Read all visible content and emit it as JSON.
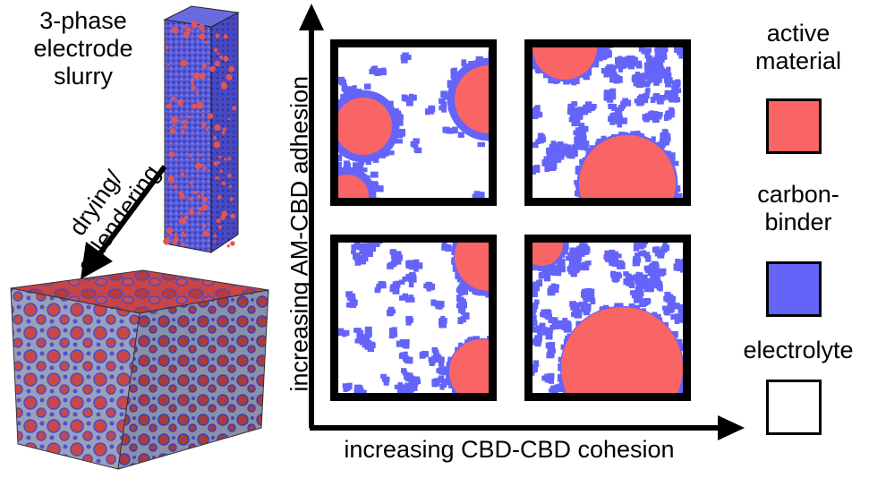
{
  "slurry": {
    "title_lines": [
      "3-phase",
      "electrode",
      "slurry"
    ]
  },
  "process": {
    "lines": [
      "drying/",
      "calendering"
    ]
  },
  "axes": {
    "y_label": "increasing AM-CBD adhesion",
    "x_label": "increasing CBD-CBD cohesion"
  },
  "legend": {
    "items": [
      {
        "lines": [
          "active",
          "material"
        ],
        "color": "#f96464"
      },
      {
        "lines": [
          "carbon-",
          "binder"
        ],
        "color": "#6464f9"
      },
      {
        "lines": [
          "electrolyte"
        ],
        "color": "#ffffff"
      }
    ]
  },
  "colors": {
    "active_material": "#f96464",
    "carbon_binder": "#6464f9",
    "electrolyte": "#ffffff",
    "cube_top": "#c94444",
    "cube_side": "#b03a3a"
  },
  "panels": [
    {
      "id": "top-left",
      "description_name": "high-adhesion-low-cohesion"
    },
    {
      "id": "top-right",
      "description_name": "high-adhesion-high-cohesion"
    },
    {
      "id": "bottom-left",
      "description_name": "low-adhesion-low-cohesion"
    },
    {
      "id": "bottom-right",
      "description_name": "low-adhesion-high-cohesion"
    }
  ]
}
